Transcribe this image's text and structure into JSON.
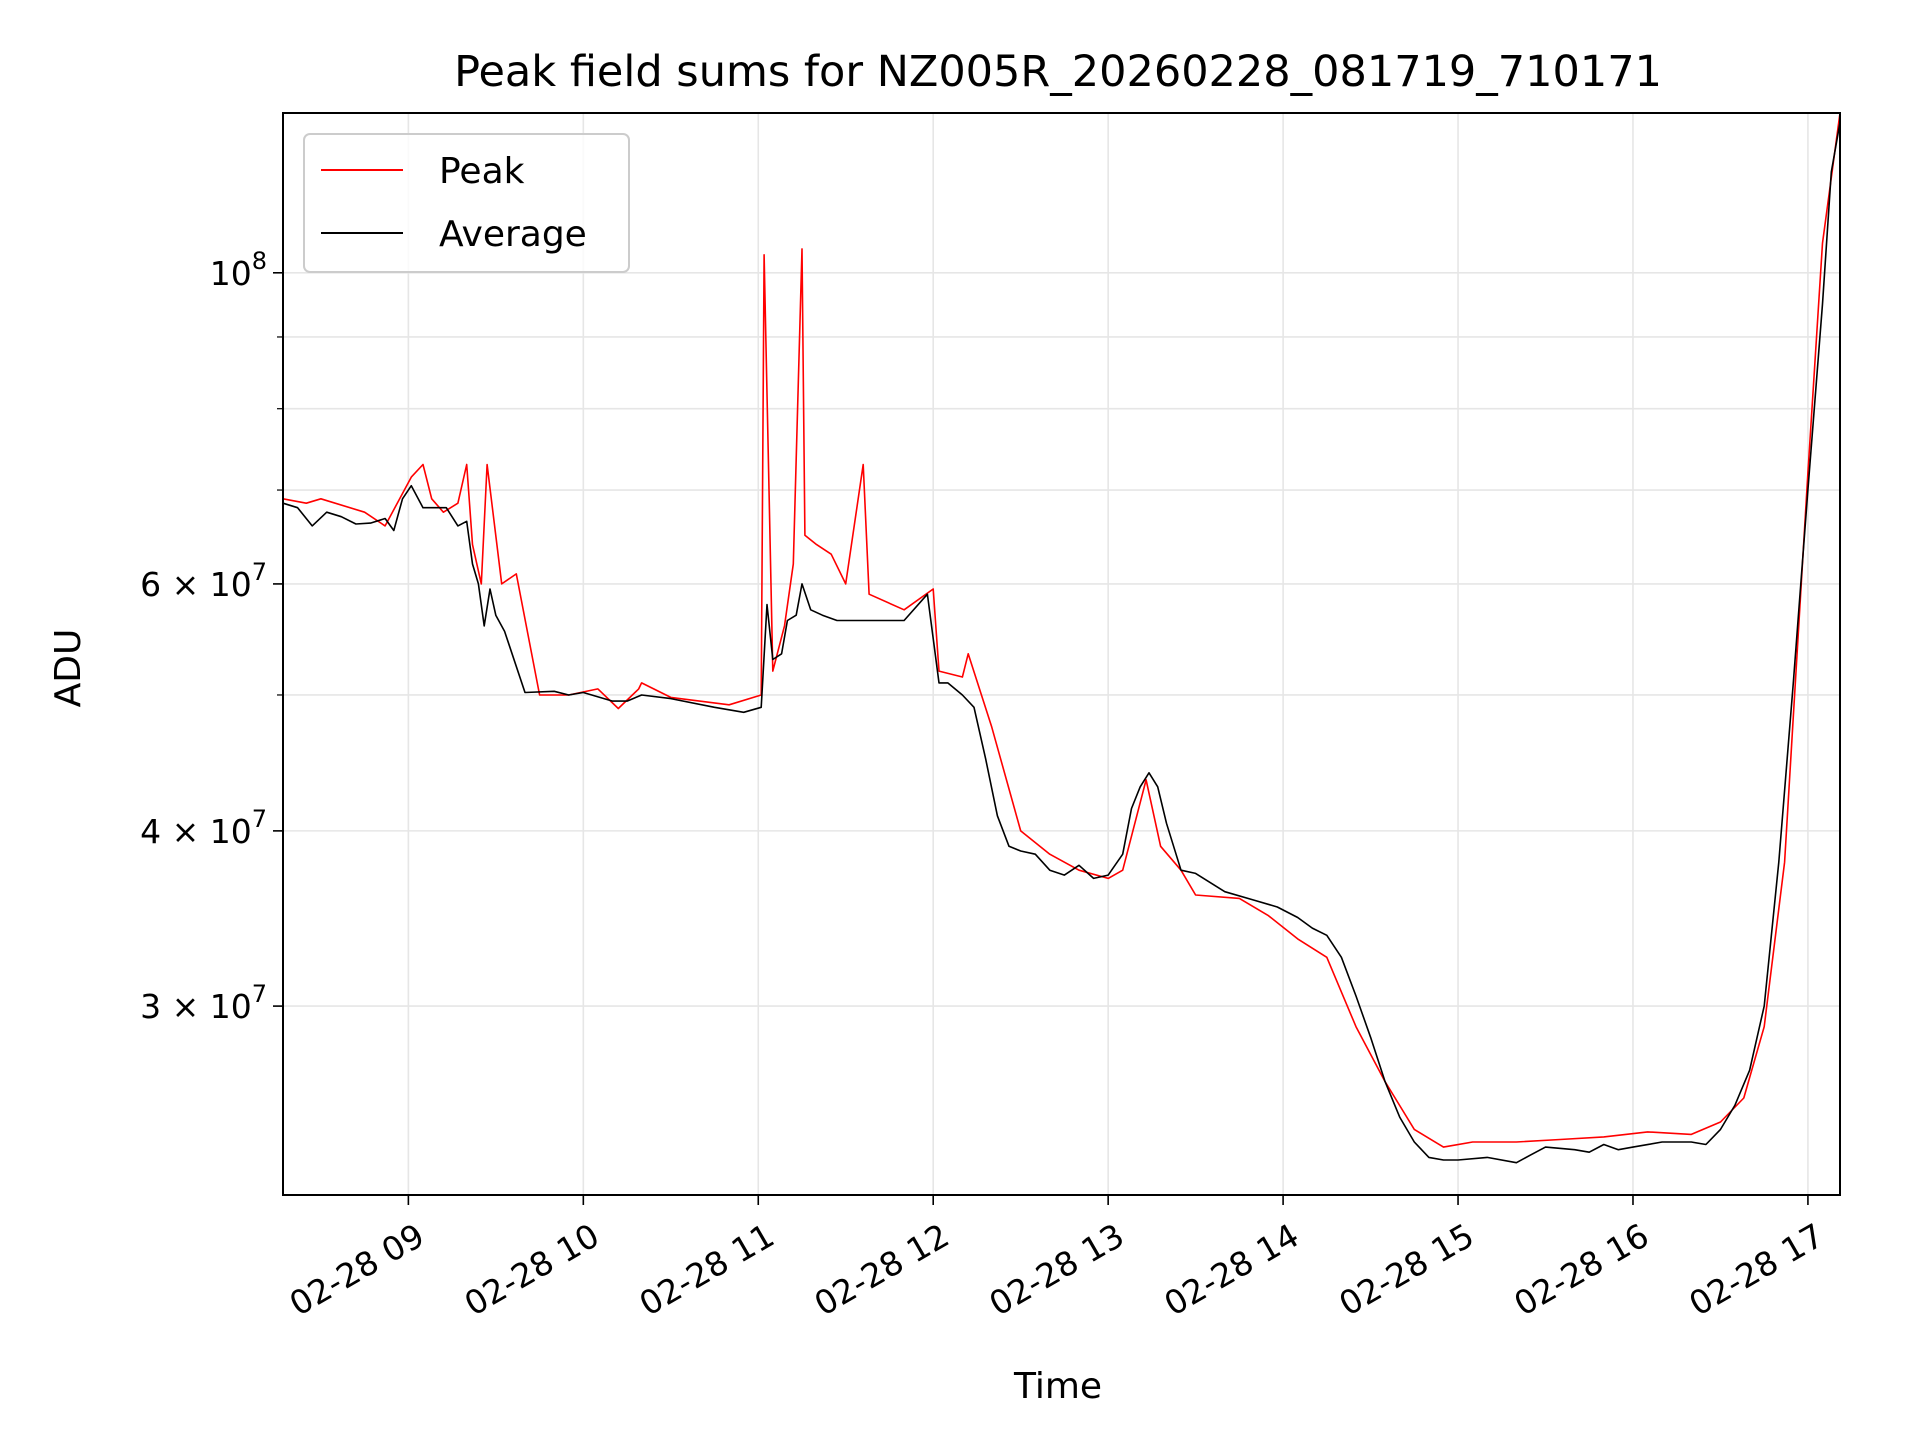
{
  "chart_data": {
    "type": "line",
    "title": "Peak field sums for NZ005R_20260228_081719_710171",
    "xlabel": "Time",
    "ylabel": "ADU",
    "y_scale": "log",
    "grid": true,
    "legend_position": "top-left",
    "xlim": [
      "2026-02-28 08:17",
      "2026-02-28 17:11"
    ],
    "ylim": [
      22000000,
      130000000
    ],
    "x_ticks": [
      {
        "time": "2026-02-28 09:00",
        "label": "02-28 09"
      },
      {
        "time": "2026-02-28 10:00",
        "label": "02-28 10"
      },
      {
        "time": "2026-02-28 11:00",
        "label": "02-28 11"
      },
      {
        "time": "2026-02-28 12:00",
        "label": "02-28 12"
      },
      {
        "time": "2026-02-28 13:00",
        "label": "02-28 13"
      },
      {
        "time": "2026-02-28 14:00",
        "label": "02-28 14"
      },
      {
        "time": "2026-02-28 15:00",
        "label": "02-28 15"
      },
      {
        "time": "2026-02-28 16:00",
        "label": "02-28 16"
      },
      {
        "time": "2026-02-28 17:00",
        "label": "02-28 17"
      }
    ],
    "y_ticks": [
      {
        "value": 100000000,
        "base": "10",
        "exp": "8"
      },
      {
        "value": 60000000,
        "base": "6 × 10",
        "exp": "7"
      },
      {
        "value": 40000000,
        "base": "4 × 10",
        "exp": "7"
      },
      {
        "value": 30000000,
        "base": "3 × 10",
        "exp": "7"
      }
    ],
    "y_minor_ticks": [
      90000000,
      80000000,
      70000000,
      50000000
    ],
    "series": [
      {
        "name": "Peak",
        "color": "#ff0000",
        "x": [
          "2026-02-28 08:17",
          "2026-02-28 08:25",
          "2026-02-28 08:30",
          "2026-02-28 08:45",
          "2026-02-28 08:52",
          "2026-02-28 09:01",
          "2026-02-28 09:05",
          "2026-02-28 09:08",
          "2026-02-28 09:12",
          "2026-02-28 09:17",
          "2026-02-28 09:20",
          "2026-02-28 09:22",
          "2026-02-28 09:25",
          "2026-02-28 09:27",
          "2026-02-28 09:32",
          "2026-02-28 09:37",
          "2026-02-28 09:45",
          "2026-02-28 09:55",
          "2026-02-28 10:05",
          "2026-02-28 10:12",
          "2026-02-28 10:19",
          "2026-02-28 10:20",
          "2026-02-28 10:30",
          "2026-02-28 10:50",
          "2026-02-28 11:01",
          "2026-02-28 11:02",
          "2026-02-28 11:05",
          "2026-02-28 11:09",
          "2026-02-28 11:12",
          "2026-02-28 11:15",
          "2026-02-28 11:16",
          "2026-02-28 11:20",
          "2026-02-28 11:25",
          "2026-02-28 11:30",
          "2026-02-28 11:36",
          "2026-02-28 11:38",
          "2026-02-28 11:50",
          "2026-02-28 12:00",
          "2026-02-28 12:02",
          "2026-02-28 12:10",
          "2026-02-28 12:12",
          "2026-02-28 12:20",
          "2026-02-28 12:30",
          "2026-02-28 12:40",
          "2026-02-28 12:50",
          "2026-02-28 13:00",
          "2026-02-28 13:05",
          "2026-02-28 13:13",
          "2026-02-28 13:18",
          "2026-02-28 13:25",
          "2026-02-28 13:30",
          "2026-02-28 13:45",
          "2026-02-28 13:55",
          "2026-02-28 14:05",
          "2026-02-28 14:15",
          "2026-02-28 14:25",
          "2026-02-28 14:35",
          "2026-02-28 14:45",
          "2026-02-28 14:55",
          "2026-02-28 15:05",
          "2026-02-28 15:20",
          "2026-02-28 15:35",
          "2026-02-28 15:50",
          "2026-02-28 16:05",
          "2026-02-28 16:20",
          "2026-02-28 16:30",
          "2026-02-28 16:38",
          "2026-02-28 16:45",
          "2026-02-28 16:52",
          "2026-02-28 17:00",
          "2026-02-28 17:05",
          "2026-02-28 17:11"
        ],
        "y": [
          69000000,
          68500000,
          69000000,
          67500000,
          66000000,
          71500000,
          73000000,
          69000000,
          67500000,
          68500000,
          73000000,
          64000000,
          60000000,
          73000000,
          60000000,
          61000000,
          50000000,
          50000000,
          50500000,
          48900000,
          50500000,
          51000000,
          49800000,
          49200000,
          50000000,
          103000000,
          52000000,
          56000000,
          62000000,
          104000000,
          65000000,
          64000000,
          63000000,
          60000000,
          73000000,
          59000000,
          57500000,
          59500000,
          52000000,
          51500000,
          53500000,
          47500000,
          40000000,
          38500000,
          37500000,
          37000000,
          37500000,
          43500000,
          39000000,
          37500000,
          36000000,
          35800000,
          34800000,
          33500000,
          32500000,
          29000000,
          26500000,
          24500000,
          23800000,
          24000000,
          24000000,
          24100000,
          24200000,
          24400000,
          24300000,
          24800000,
          25800000,
          29000000,
          38000000,
          72000000,
          105000000,
          130000000
        ]
      },
      {
        "name": "Average",
        "color": "#000000",
        "x": [
          "2026-02-28 08:17",
          "2026-02-28 08:22",
          "2026-02-28 08:27",
          "2026-02-28 08:32",
          "2026-02-28 08:37",
          "2026-02-28 08:42",
          "2026-02-28 08:47",
          "2026-02-28 08:52",
          "2026-02-28 08:55",
          "2026-02-28 08:58",
          "2026-02-28 09:01",
          "2026-02-28 09:05",
          "2026-02-28 09:09",
          "2026-02-28 09:13",
          "2026-02-28 09:17",
          "2026-02-28 09:20",
          "2026-02-28 09:22",
          "2026-02-28 09:24",
          "2026-02-28 09:26",
          "2026-02-28 09:28",
          "2026-02-28 09:30",
          "2026-02-28 09:33",
          "2026-02-28 09:40",
          "2026-02-28 09:50",
          "2026-02-28 09:55",
          "2026-02-28 10:00",
          "2026-02-28 10:10",
          "2026-02-28 10:15",
          "2026-02-28 10:20",
          "2026-02-28 10:30",
          "2026-02-28 10:45",
          "2026-02-28 10:55",
          "2026-02-28 11:01",
          "2026-02-28 11:03",
          "2026-02-28 11:05",
          "2026-02-28 11:08",
          "2026-02-28 11:10",
          "2026-02-28 11:13",
          "2026-02-28 11:15",
          "2026-02-28 11:18",
          "2026-02-28 11:22",
          "2026-02-28 11:27",
          "2026-02-28 11:32",
          "2026-02-28 11:40",
          "2026-02-28 11:50",
          "2026-02-28 11:58",
          "2026-02-28 12:02",
          "2026-02-28 12:05",
          "2026-02-28 12:10",
          "2026-02-28 12:14",
          "2026-02-28 12:18",
          "2026-02-28 12:22",
          "2026-02-28 12:26",
          "2026-02-28 12:30",
          "2026-02-28 12:35",
          "2026-02-28 12:40",
          "2026-02-28 12:45",
          "2026-02-28 12:50",
          "2026-02-28 12:55",
          "2026-02-28 13:00",
          "2026-02-28 13:05",
          "2026-02-28 13:08",
          "2026-02-28 13:11",
          "2026-02-28 13:14",
          "2026-02-28 13:17",
          "2026-02-28 13:20",
          "2026-02-28 13:25",
          "2026-02-28 13:30",
          "2026-02-28 13:40",
          "2026-02-28 13:50",
          "2026-02-28 13:58",
          "2026-02-28 14:05",
          "2026-02-28 14:10",
          "2026-02-28 14:15",
          "2026-02-28 14:20",
          "2026-02-28 14:25",
          "2026-02-28 14:30",
          "2026-02-28 14:35",
          "2026-02-28 14:40",
          "2026-02-28 14:45",
          "2026-02-28 14:50",
          "2026-02-28 14:55",
          "2026-02-28 15:00",
          "2026-02-28 15:10",
          "2026-02-28 15:20",
          "2026-02-28 15:25",
          "2026-02-28 15:30",
          "2026-02-28 15:40",
          "2026-02-28 15:45",
          "2026-02-28 15:50",
          "2026-02-28 15:55",
          "2026-02-28 16:00",
          "2026-02-28 16:10",
          "2026-02-28 16:15",
          "2026-02-28 16:20",
          "2026-02-28 16:25",
          "2026-02-28 16:30",
          "2026-02-28 16:35",
          "2026-02-28 16:40",
          "2026-02-28 16:45",
          "2026-02-28 16:50",
          "2026-02-28 16:55",
          "2026-02-28 17:00",
          "2026-02-28 17:05",
          "2026-02-28 17:08",
          "2026-02-28 17:11"
        ],
        "y": [
          68500000,
          68000000,
          66000000,
          67500000,
          67000000,
          66200000,
          66300000,
          66800000,
          65500000,
          69000000,
          70500000,
          68000000,
          68000000,
          68000000,
          66000000,
          66500000,
          62000000,
          60000000,
          56000000,
          59500000,
          57000000,
          55500000,
          50200000,
          50300000,
          50000000,
          50200000,
          49500000,
          49500000,
          50000000,
          49700000,
          49000000,
          48600000,
          49000000,
          58000000,
          53000000,
          53500000,
          56500000,
          57000000,
          60000000,
          57500000,
          57000000,
          56500000,
          56500000,
          56500000,
          56500000,
          59000000,
          51000000,
          51000000,
          50000000,
          49000000,
          45000000,
          41000000,
          39000000,
          38700000,
          38500000,
          37500000,
          37200000,
          37800000,
          37000000,
          37200000,
          38500000,
          41500000,
          43000000,
          44000000,
          43000000,
          40500000,
          37500000,
          37300000,
          36200000,
          35700000,
          35300000,
          34700000,
          34100000,
          33700000,
          32500000,
          30500000,
          28500000,
          26500000,
          25000000,
          24000000,
          23400000,
          23300000,
          23300000,
          23400000,
          23200000,
          23500000,
          23800000,
          23700000,
          23600000,
          23900000,
          23700000,
          23800000,
          24000000,
          24000000,
          24000000,
          23900000,
          24500000,
          25500000,
          27000000,
          30000000,
          38000000,
          51000000,
          70000000,
          95000000,
          118000000,
          128000000
        ]
      }
    ]
  }
}
